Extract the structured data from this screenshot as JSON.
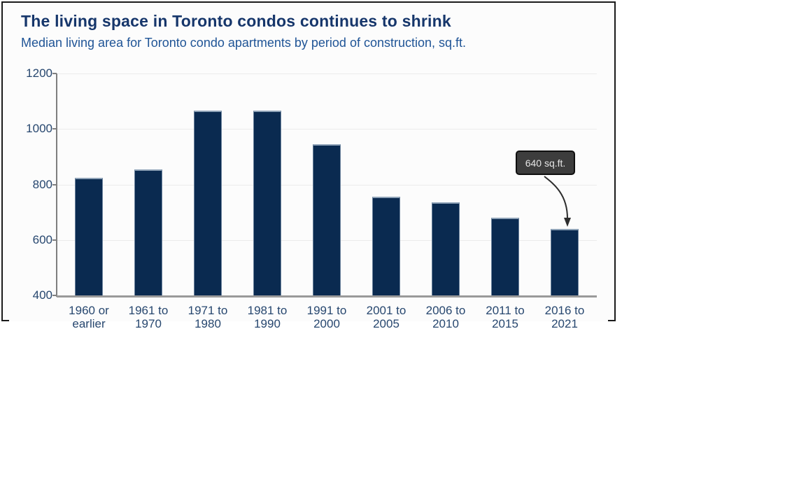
{
  "chart_data": {
    "type": "bar",
    "title": "The living space in Toronto condos continues to shrink",
    "subtitle": "Median living area for Toronto condo apartments by period of construction, sq.ft.",
    "categories": [
      "1960 or earlier",
      "1961 to 1970",
      "1971 to 1980",
      "1981 to 1990",
      "1991 to 2000",
      "2001 to 2005",
      "2006 to 2010",
      "2011 to 2015",
      "2016 to 2021"
    ],
    "category_label_lines": [
      [
        "1960 or",
        "earlier"
      ],
      [
        "1961 to",
        "1970"
      ],
      [
        "1971 to",
        "1980"
      ],
      [
        "1981 to",
        "1990"
      ],
      [
        "1991 to",
        "2000"
      ],
      [
        "2001 to",
        "2005"
      ],
      [
        "2006 to",
        "2010"
      ],
      [
        "2011 to",
        "2015"
      ],
      [
        "2016 to",
        "2021"
      ]
    ],
    "values": [
      825,
      855,
      1065,
      1065,
      945,
      755,
      735,
      680,
      640
    ],
    "unit": "sq.ft.",
    "xlabel": "",
    "ylabel": "",
    "ylim": [
      400,
      1200
    ],
    "yticks": [
      400,
      600,
      800,
      1000,
      1200
    ],
    "grid": "horizontal gridlines at y ticks",
    "legend": "none",
    "annotation": {
      "text": "640 sq.ft.",
      "target_category": "2016 to 2021",
      "target_value": 640
    },
    "colors": {
      "bar": "#0a2a50",
      "bar_top_edge": "#8fa3b8",
      "title": "#16366b",
      "subtitle": "#1f5496",
      "axis_text": "#27476f",
      "gridline": "#ebebeb",
      "axis_line": "#7f7f7f",
      "baseline": "#9a9a9a",
      "annotation_bg": "#3d3d3d",
      "annotation_border": "#0f0f0f",
      "annotation_text": "#e6e6e6",
      "card_border": "#1a1a1a",
      "card_bg": "#fcfcfc"
    }
  }
}
